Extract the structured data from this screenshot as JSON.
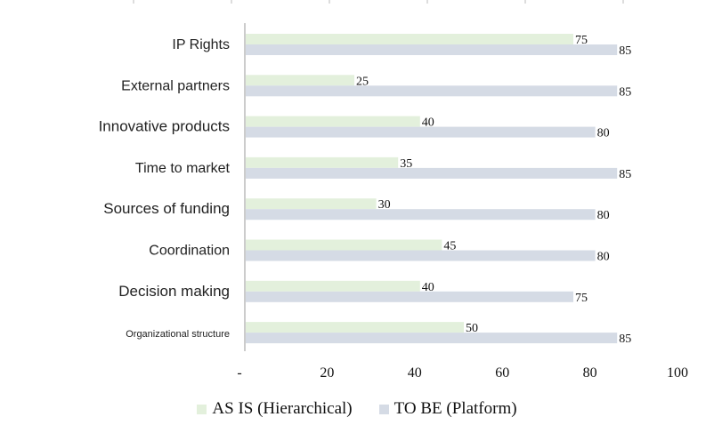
{
  "chart_data": {
    "type": "bar",
    "orientation": "horizontal",
    "categories": [
      "IP Rights",
      "External partners",
      "Innovative products",
      "Time to market",
      "Sources of funding",
      "Coordination",
      "Decision making",
      "Organizational structure"
    ],
    "series": [
      {
        "name": "AS IS (Hierarchical)",
        "color": "#e3f0dc",
        "values": [
          75,
          25,
          40,
          35,
          30,
          45,
          40,
          50
        ]
      },
      {
        "name": "TO BE (Platform)",
        "color": "#d5dbe5",
        "values": [
          85,
          85,
          80,
          85,
          80,
          80,
          75,
          85
        ]
      }
    ],
    "xlim": [
      0,
      100
    ],
    "xticks": [
      "-",
      "20",
      "40",
      "60",
      "80",
      "100"
    ],
    "xtick_values": [
      0,
      20,
      40,
      60,
      80,
      100
    ],
    "legend_position": "bottom",
    "grid": false
  }
}
